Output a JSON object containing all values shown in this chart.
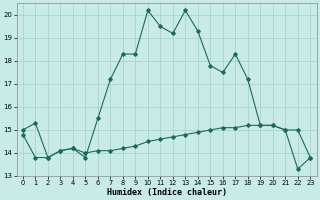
{
  "title": "",
  "xlabel": "Humidex (Indice chaleur)",
  "xlim": [
    -0.5,
    23.5
  ],
  "ylim": [
    13,
    20.5
  ],
  "yticks": [
    13,
    14,
    15,
    16,
    17,
    18,
    19,
    20
  ],
  "xticks": [
    0,
    1,
    2,
    3,
    4,
    5,
    6,
    7,
    8,
    9,
    10,
    11,
    12,
    13,
    14,
    15,
    16,
    17,
    18,
    19,
    20,
    21,
    22,
    23
  ],
  "bg_color": "#c8ebe8",
  "grid_color": "#aad4d0",
  "line_color": "#1a6b5a",
  "line1_x": [
    0,
    1,
    2,
    3,
    4,
    5,
    6,
    7,
    8,
    9,
    10,
    11,
    12,
    13,
    14,
    15,
    16,
    17,
    18,
    19,
    20,
    21,
    22,
    23
  ],
  "line1_y": [
    15.0,
    15.3,
    13.8,
    14.1,
    14.2,
    13.8,
    15.5,
    17.2,
    18.3,
    18.3,
    20.2,
    19.5,
    19.2,
    20.2,
    19.3,
    17.8,
    17.5,
    18.3,
    17.2,
    15.2,
    15.2,
    15.0,
    15.0,
    13.8
  ],
  "line2_x": [
    0,
    1,
    2,
    3,
    4,
    5,
    6,
    7,
    8,
    9,
    10,
    11,
    12,
    13,
    14,
    15,
    16,
    17,
    18,
    19,
    20,
    21,
    22,
    23
  ],
  "line2_y": [
    14.8,
    13.8,
    13.8,
    14.1,
    14.2,
    14.0,
    14.1,
    14.1,
    14.2,
    14.3,
    14.5,
    14.6,
    14.7,
    14.8,
    14.9,
    15.0,
    15.1,
    15.1,
    15.2,
    15.2,
    15.2,
    15.0,
    13.3,
    13.8
  ]
}
